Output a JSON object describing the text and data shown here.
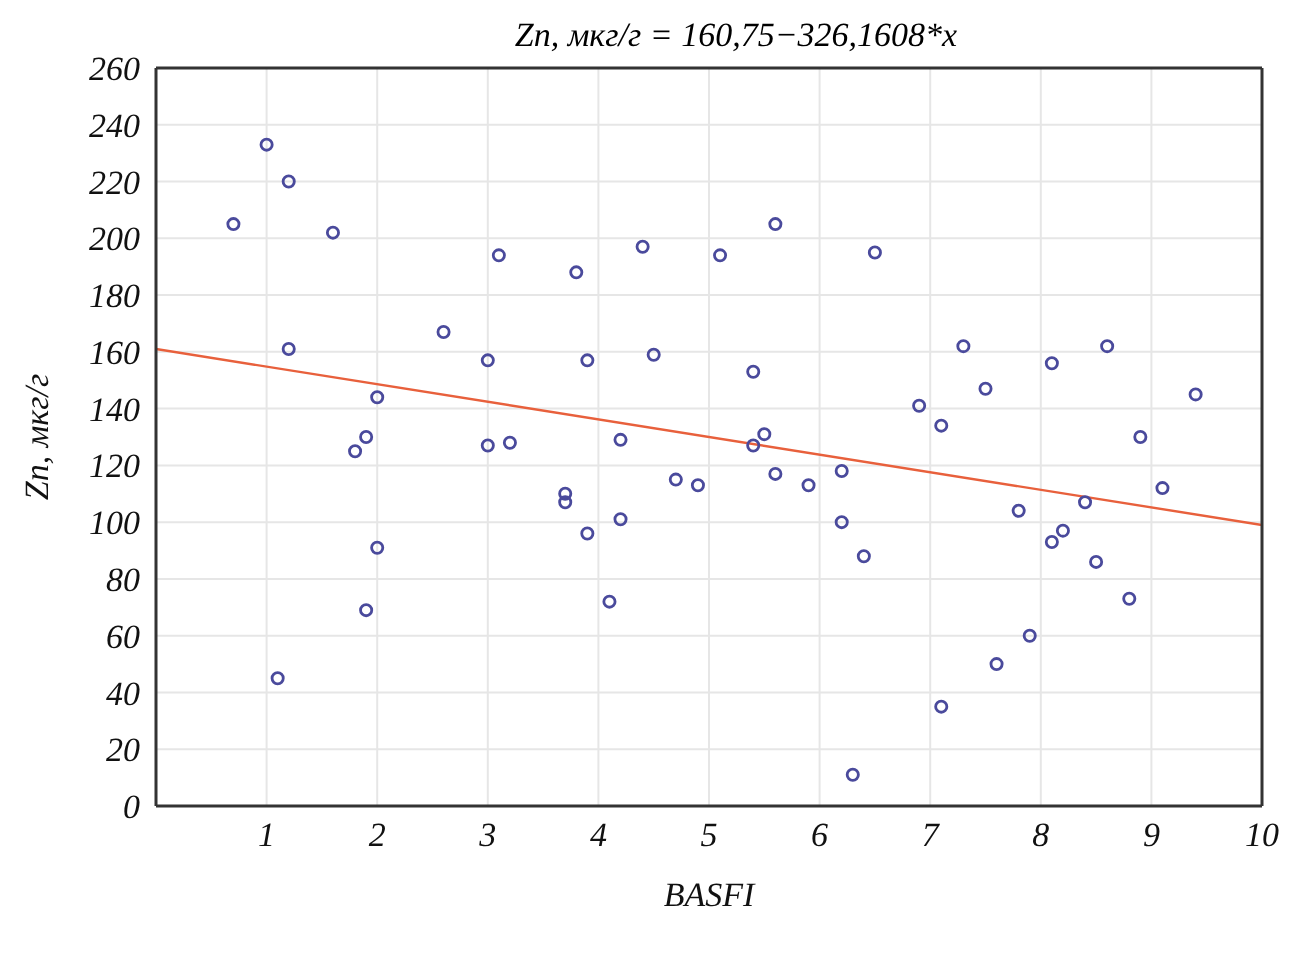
{
  "chart_data": {
    "type": "scatter",
    "title": "Zn, мкг/г = 160,75−326,1608*x",
    "xlabel": "BASFI",
    "ylabel": "Zn, мкг/г",
    "xlim": [
      0,
      10
    ],
    "xticks": [
      1,
      2,
      3,
      4,
      5,
      6,
      7,
      8,
      9,
      10
    ],
    "ylim": [
      0,
      260
    ],
    "yticks": [
      0,
      20,
      40,
      60,
      80,
      100,
      120,
      140,
      160,
      180,
      200,
      220,
      240,
      260
    ],
    "grid": true,
    "marker": "circle",
    "legend": false,
    "series": [
      {
        "color": "#4a4a9c",
        "x": [
          0.7,
          1.0,
          1.1,
          1.2,
          1.2,
          1.6,
          1.8,
          1.9,
          1.9,
          2.0,
          2.0,
          2.6,
          3.0,
          3.0,
          3.1,
          3.2,
          3.7,
          3.7,
          3.8,
          3.9,
          3.9,
          4.1,
          4.2,
          4.2,
          4.4,
          4.5,
          4.7,
          4.9,
          5.1,
          5.4,
          5.4,
          5.5,
          5.6,
          5.6,
          5.9,
          6.2,
          6.2,
          6.3,
          6.4,
          6.5,
          6.9,
          7.1,
          7.1,
          7.3,
          7.5,
          7.6,
          7.8,
          7.9,
          8.1,
          8.1,
          8.2,
          8.4,
          8.5,
          8.6,
          8.8,
          8.9,
          9.1,
          9.4
        ],
        "values": [
          205,
          233,
          45,
          220,
          161,
          202,
          125,
          130,
          69,
          144,
          91,
          167,
          157,
          127,
          194,
          128,
          110,
          107,
          188,
          157,
          96,
          72,
          129,
          101,
          197,
          159,
          115,
          113,
          194,
          153,
          127,
          131,
          205,
          117,
          113,
          118,
          100,
          11,
          88,
          195,
          141,
          134,
          35,
          162,
          147,
          50,
          104,
          60,
          156,
          93,
          97,
          107,
          86,
          162,
          73,
          130,
          112,
          145
        ]
      },
      {
        "type": "line",
        "color": "#e8603c",
        "marker": "none",
        "x": [
          0,
          10
        ],
        "values": [
          161,
          99
        ]
      }
    ]
  }
}
